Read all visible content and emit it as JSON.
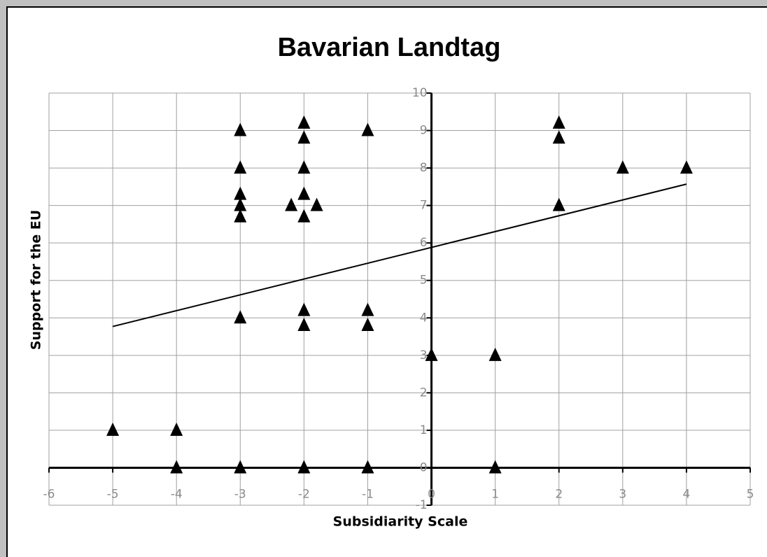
{
  "chart_data": {
    "type": "scatter",
    "title": "Bavarian Landtag",
    "x_label": "Subsidiarity Scale",
    "y_label": "Support for the EU",
    "x": [
      -5,
      -4,
      -4,
      -3,
      -3,
      -3,
      -3,
      -3,
      -3,
      -3,
      -2,
      -2,
      -2,
      -2,
      -2.2,
      -1.8,
      -2,
      -2,
      -2,
      -2,
      -1,
      -1,
      -1,
      -1,
      0,
      1,
      1,
      2,
      2,
      2,
      3,
      4
    ],
    "y": [
      1,
      1,
      0,
      9,
      8,
      7.3,
      7,
      6.7,
      4,
      0,
      9.2,
      8.8,
      8,
      7.3,
      7,
      7,
      6.7,
      4.2,
      3.8,
      0,
      9,
      4.2,
      3.8,
      0,
      3,
      3,
      0,
      9.2,
      8.8,
      7,
      8,
      8
    ],
    "color": "#000000",
    "trendline": {
      "x": [
        -5,
        4
      ],
      "y": [
        3.77,
        7.57
      ]
    },
    "xlim": [
      -6,
      5
    ],
    "xticks": [
      -6,
      -5,
      -4,
      -3,
      -2,
      -1,
      0,
      1,
      2,
      3,
      4,
      5
    ],
    "ylim": [
      -1,
      10
    ],
    "yticks": [
      -1,
      0,
      1,
      2,
      3,
      4,
      5,
      6,
      7,
      8,
      9,
      10
    ],
    "grid": true
  }
}
